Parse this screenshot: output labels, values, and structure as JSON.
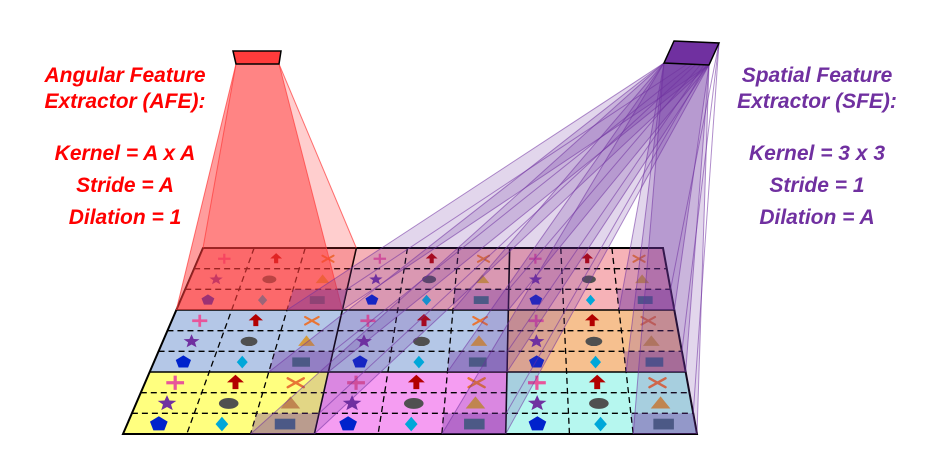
{
  "afe": {
    "title_line1": "Angular Feature",
    "title_line2": "Extractor (AFE):",
    "kernel": "Kernel = A x A",
    "stride": "Stride = A",
    "dilation": "Dilation = 1",
    "color": "#ff0000"
  },
  "sfe": {
    "title_line1": "Spatial Feature",
    "title_line2": "Extractor (SFE):",
    "kernel": "Kernel = 3 x 3",
    "stride": "Stride = 1",
    "dilation": "Dilation = A",
    "color": "#7030a0"
  },
  "grid": {
    "macro_cells": 3,
    "sub_cells": 3,
    "macro_colors": [
      [
        "#f6b2b7",
        "#f6b2b7",
        "#f6b2b7"
      ],
      [
        "#b4c7e7",
        "#b4c7e7",
        "#f6c08f"
      ],
      [
        "#ffff7f",
        "#f59df2",
        "#b6f7ef"
      ]
    ],
    "sub_icons": [
      [
        "plus",
        "arrow-up",
        "x-mark"
      ],
      [
        "star",
        "ellipse",
        "triangle"
      ],
      [
        "pentagon",
        "diamond",
        "rectangle"
      ]
    ],
    "icon_colors": {
      "plus": "#e8559a",
      "arrow-up": "#b30000",
      "x-mark": "#e87535",
      "star": "#7030a0",
      "ellipse": "#505050",
      "triangle": "#d59a3c",
      "pentagon": "#0022cc",
      "diamond": "#00a7d9",
      "rectangle": "#2e7f6e"
    }
  },
  "afe_highlight": {
    "row": 0,
    "col": 0,
    "color": "#ff3b3b"
  },
  "sfe_highlight": {
    "color": "#7030a0"
  }
}
